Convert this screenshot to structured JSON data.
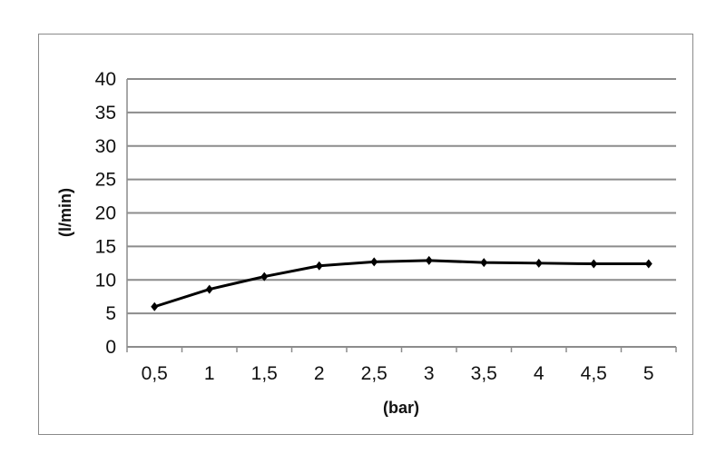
{
  "chart_data": {
    "type": "line",
    "xlabel": "(bar)",
    "ylabel": "(l/min)",
    "categories": [
      "0,5",
      "1",
      "1,5",
      "2",
      "2,5",
      "3",
      "3,5",
      "4",
      "4,5",
      "5"
    ],
    "series": [
      {
        "values": [
          6.0,
          8.6,
          10.5,
          12.1,
          12.7,
          12.9,
          12.6,
          12.5,
          12.4,
          12.4
        ]
      }
    ],
    "ylim": [
      0,
      40
    ],
    "yticks": [
      "0",
      "5",
      "10",
      "15",
      "20",
      "25",
      "30",
      "35",
      "40"
    ],
    "grid": true,
    "line_color": "#000000",
    "grid_color": "#8c8c8c"
  }
}
